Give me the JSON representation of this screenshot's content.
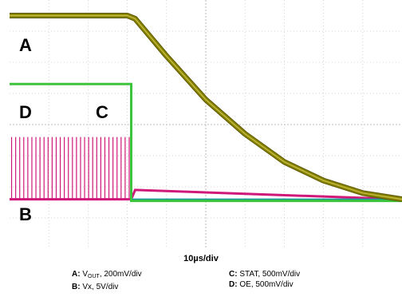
{
  "chart_data": {
    "type": "line",
    "xlabel": "10µs/div",
    "grid": true,
    "divisions": {
      "x": 10,
      "y": 8
    },
    "x_unit": "div",
    "xlim": [
      0,
      10
    ],
    "channels": [
      {
        "id": "A",
        "label": "A",
        "signal_prefix": "V",
        "signal_sub": "OUT",
        "scale": "200mV/div",
        "color": "#8a8400",
        "x": [
          0,
          3,
          3.2,
          4,
          5,
          6,
          7,
          8,
          9,
          10
        ],
        "y": [
          7.5,
          7.5,
          7.4,
          6.2,
          4.8,
          3.7,
          2.8,
          2.2,
          1.8,
          1.6
        ]
      },
      {
        "id": "B",
        "label": "B",
        "signal": "Vx",
        "scale": "5V/div",
        "color": "#d0187a",
        "x": [
          0,
          3.1,
          3.2,
          10
        ],
        "y": [
          1.6,
          1.6,
          1.9,
          1.6
        ],
        "burst": {
          "x_start": 0,
          "x_end": 3.1,
          "pulses": 30,
          "high": 3.6
        }
      },
      {
        "id": "C",
        "label": "C",
        "signal": "STAT",
        "scale": "500mV/div",
        "color": "#1a9a9a",
        "x": [
          0,
          3.1,
          3.1,
          10
        ],
        "y": [
          5.3,
          5.3,
          1.6,
          1.6
        ]
      },
      {
        "id": "D",
        "label": "D",
        "signal": "OE",
        "scale": "500mV/div",
        "color": "#3cc43c",
        "x": [
          0,
          3.1,
          3.1,
          10
        ],
        "y": [
          5.3,
          5.3,
          1.55,
          1.55
        ]
      }
    ]
  }
}
